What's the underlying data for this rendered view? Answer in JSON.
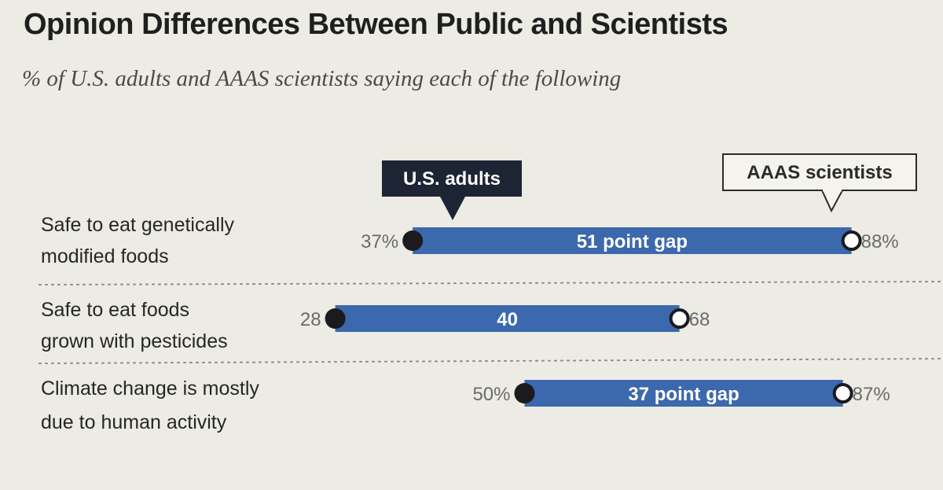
{
  "chart_data": {
    "type": "dumbbell",
    "title": "Opinion Differences Between Public and Scientists",
    "subtitle": "% of U.S. adults and AAAS scientists saying each of the following",
    "legend": {
      "series_1": "U.S. adults",
      "series_2": "AAAS scientists"
    },
    "series": [
      {
        "name": "U.S. adults",
        "values": [
          37,
          28,
          50
        ]
      },
      {
        "name": "AAAS scientists",
        "values": [
          88,
          68,
          87
        ]
      }
    ],
    "rows": [
      {
        "label_lines": [
          "Safe to eat genetically",
          "modified foods"
        ],
        "us_adults": 37,
        "us_adults_label": "37%",
        "scientists": 88,
        "scientists_label": "88%",
        "gap_label": "51 point gap"
      },
      {
        "label_lines": [
          "Safe to eat foods",
          "grown with pesticides"
        ],
        "us_adults": 28,
        "us_adults_label": "28",
        "scientists": 68,
        "scientists_label": "68",
        "gap_label": "40"
      },
      {
        "label_lines": [
          "Climate change is mostly",
          "due to human activity"
        ],
        "us_adults": 50,
        "us_adults_label": "50%",
        "scientists": 87,
        "scientists_label": "87%",
        "gap_label": "37 point gap"
      }
    ]
  },
  "colors": {
    "bar": "#3c68ad",
    "dot_dark": "#1a1a1f",
    "legend_dark_bg": "#1d2535",
    "background": "#ecebe4"
  }
}
